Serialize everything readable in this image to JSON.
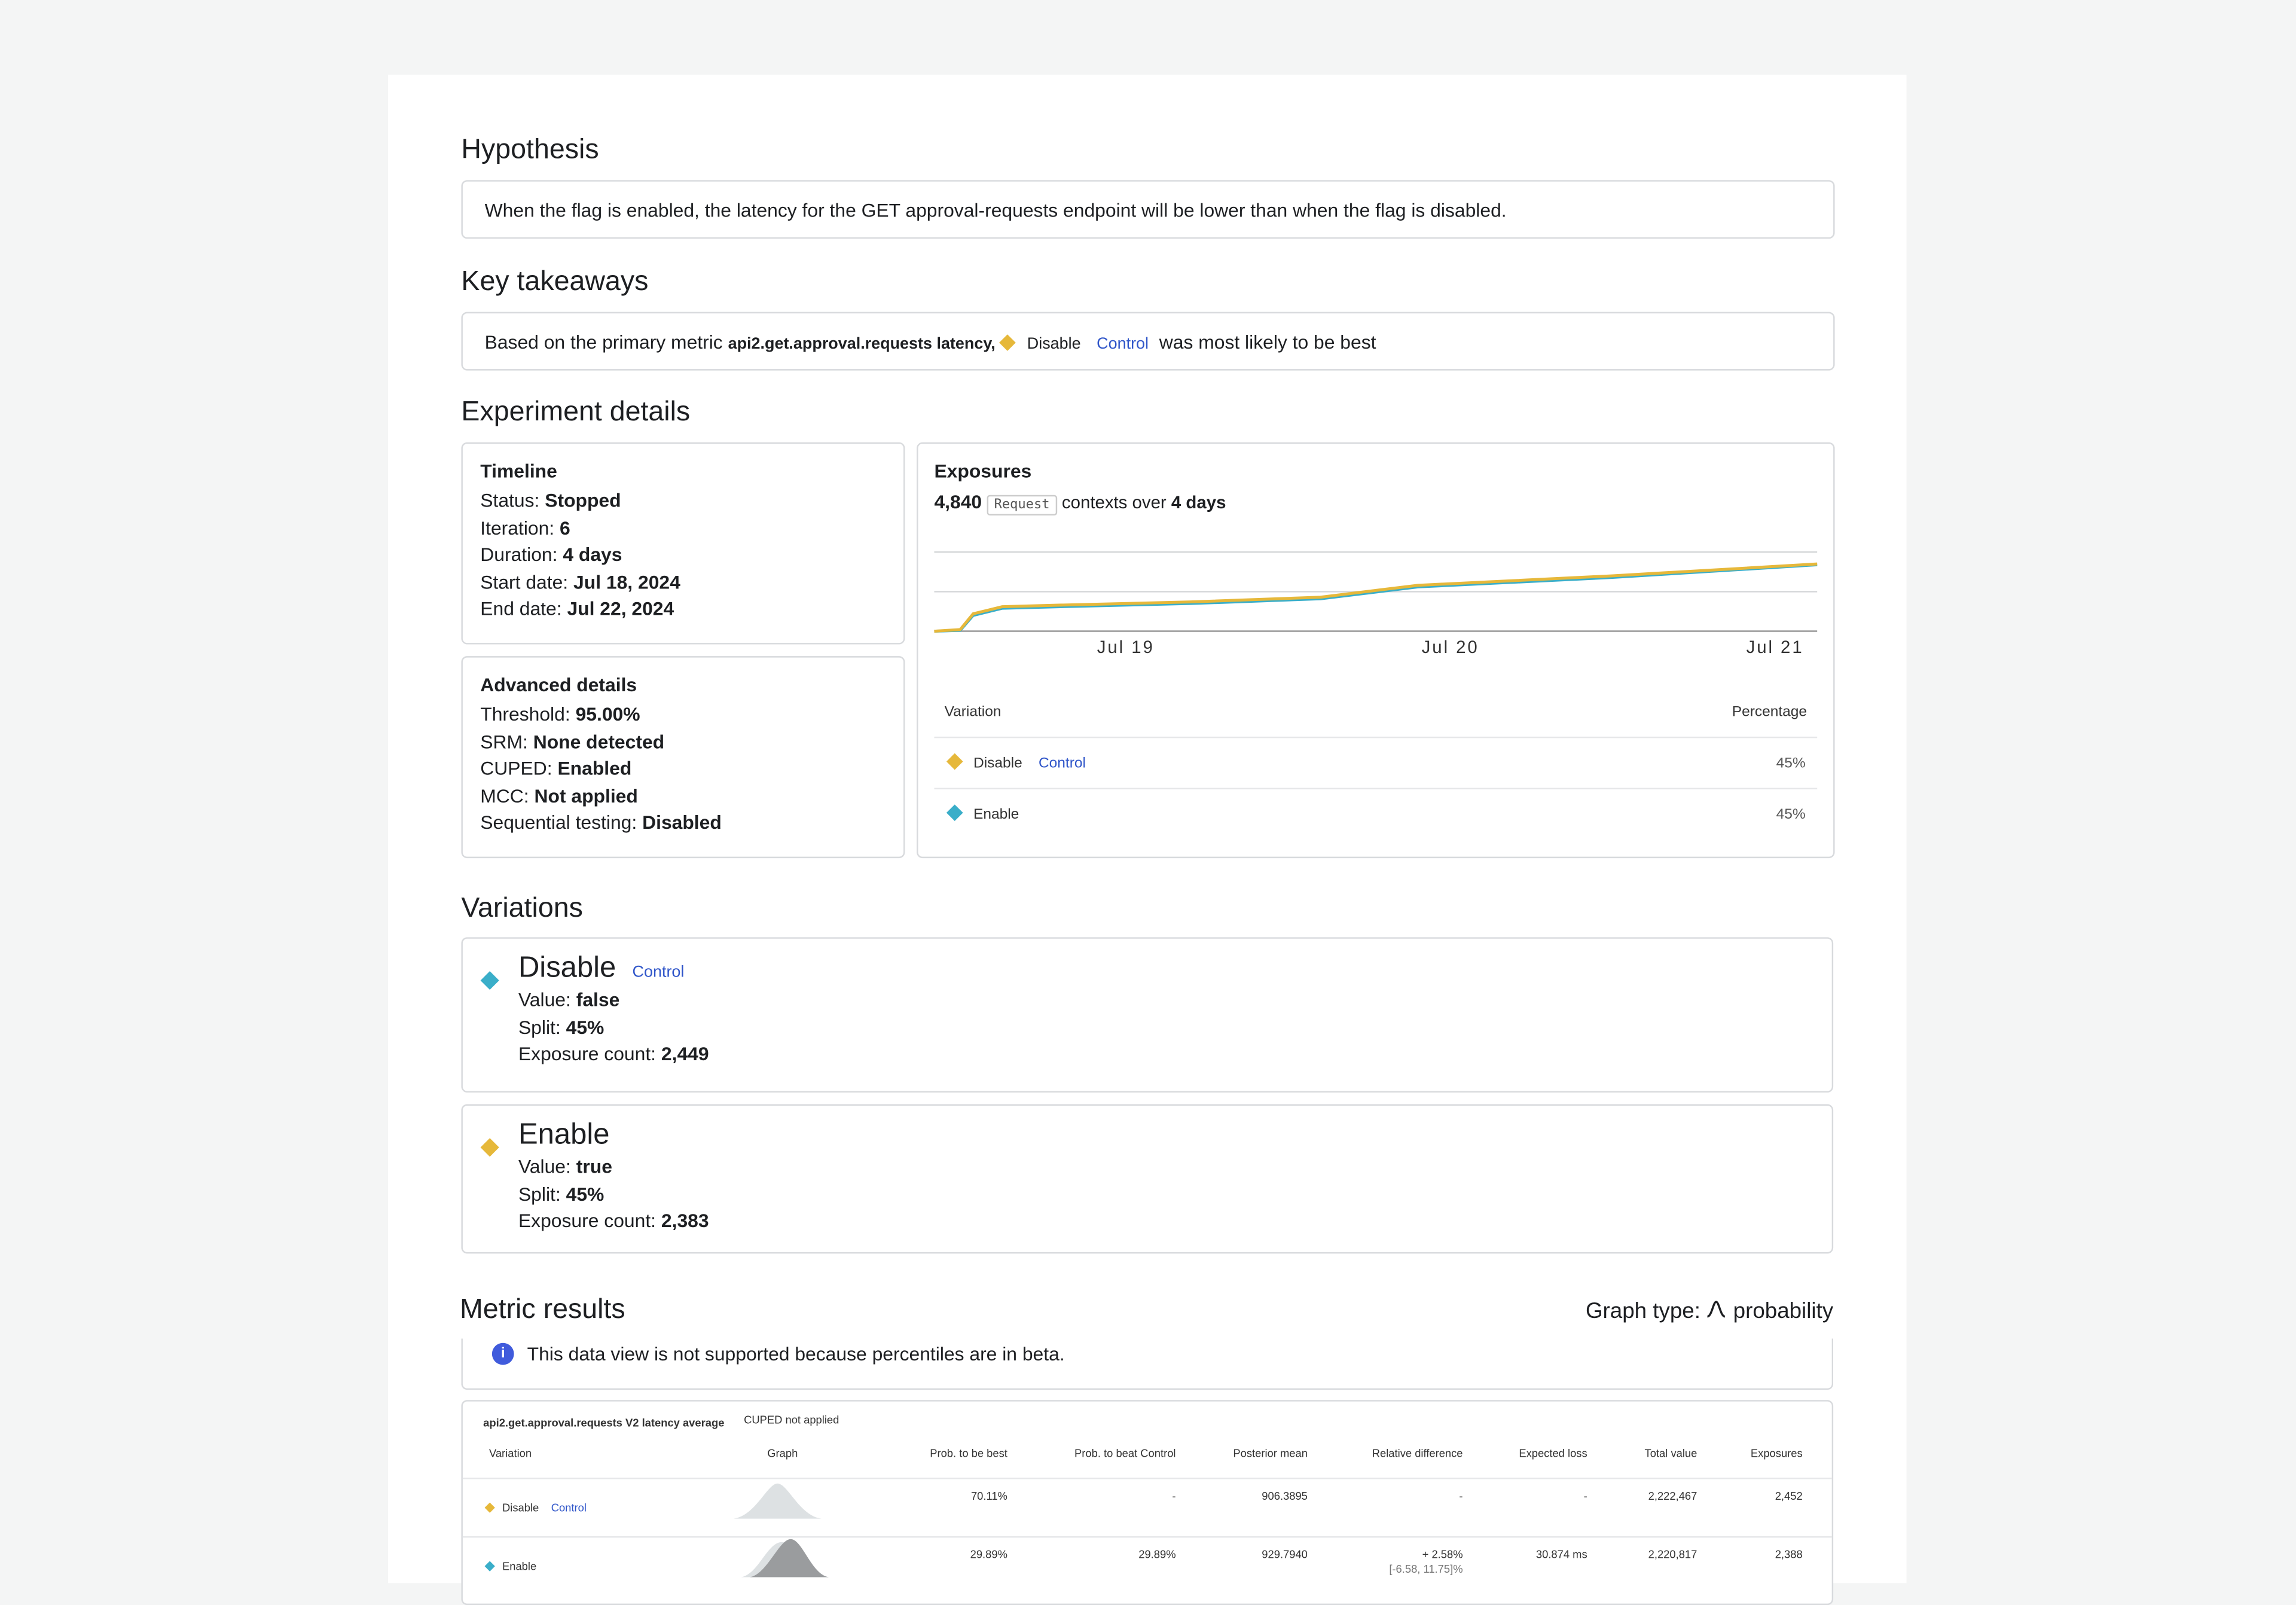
{
  "hypothesis": {
    "heading": "Hypothesis",
    "text": "When the flag is enabled, the latency for the GET approval-requests endpoint will be lower than when the flag is disabled."
  },
  "takeaways": {
    "heading": "Key takeaways",
    "prefix": "Based on the primary metric",
    "metric": "api2.get.approval.requests latency,",
    "variation": "Disable",
    "badge": "Control",
    "suffix": "was most likely to be best"
  },
  "details": {
    "heading": "Experiment details",
    "timeline": {
      "title": "Timeline",
      "items": [
        [
          "Status:",
          "Stopped"
        ],
        [
          "Iteration:",
          "6"
        ],
        [
          "Duration:",
          "4 days"
        ],
        [
          "Start date:",
          "Jul 18, 2024"
        ],
        [
          "End date:",
          "Jul 22, 2024"
        ]
      ]
    },
    "advanced": {
      "title": "Advanced details",
      "items": [
        [
          "Threshold:",
          "95.00%"
        ],
        [
          "SRM:",
          "None detected"
        ],
        [
          "CUPED:",
          "Enabled"
        ],
        [
          "MCC:",
          "Not applied"
        ],
        [
          "Sequential testing:",
          "Disabled"
        ]
      ]
    },
    "exposures": {
      "title": "Exposures",
      "count": "4,840",
      "kind": "Request",
      "mid": "contexts over",
      "duration": "4 days",
      "table": {
        "headers": [
          "Variation",
          "Percentage"
        ],
        "rows": [
          {
            "name": "Disable",
            "badge": "Control",
            "pct": "45%"
          },
          {
            "name": "Enable",
            "pct": "45%"
          }
        ]
      }
    }
  },
  "chart_data": {
    "type": "line",
    "xlim": [
      0.41,
      3.13
    ],
    "ylim": [
      0,
      1
    ],
    "xticks": [
      {
        "value": 1,
        "label": "Jul 19"
      },
      {
        "value": 2,
        "label": "Jul 20"
      },
      {
        "value": 3,
        "label": "Jul 21"
      }
    ],
    "yticks": [
      0,
      0.5,
      1
    ],
    "grid": true,
    "x": [
      0.41,
      0.49,
      0.53,
      0.62,
      0.8,
      1.2,
      1.6,
      1.78,
      1.9,
      2.5,
      3.13
    ],
    "series": [
      {
        "name": "Disable",
        "color": "#e6b83a",
        "values": [
          0,
          0.02,
          0.22,
          0.31,
          0.33,
          0.37,
          0.43,
          0.52,
          0.58,
          0.7,
          0.85
        ]
      },
      {
        "name": "Enable",
        "color": "#3aaec9",
        "values": [
          0,
          0.01,
          0.2,
          0.29,
          0.31,
          0.35,
          0.41,
          0.5,
          0.56,
          0.68,
          0.84
        ]
      }
    ]
  },
  "variations": {
    "heading": "Variations",
    "items": [
      {
        "name": "Disable",
        "badge": "Control",
        "fields": [
          [
            "Value:",
            "false"
          ],
          [
            "Split:",
            "45%"
          ],
          [
            "Exposure count:",
            "2,449"
          ]
        ]
      },
      {
        "name": "Enable",
        "fields": [
          [
            "Value:",
            "true"
          ],
          [
            "Split:",
            "45%"
          ],
          [
            "Exposure count:",
            "2,383"
          ]
        ]
      }
    ]
  },
  "metrics": {
    "heading": "Metric results",
    "graph_label": "Graph type:",
    "graph_type": "probability",
    "info": "This data view is not supported because percentiles are in beta.",
    "metric": "api2.get.approval.requests V2 latency average",
    "cuped": "CUPED not applied",
    "headers": [
      "Variation",
      "Graph",
      "Prob. to be best",
      "Prob. to beat Control",
      "Posterior mean",
      "Relative difference",
      "Expected loss",
      "Total value",
      "Exposures"
    ],
    "rows": [
      {
        "name": "Disable",
        "badge": "Control",
        "cells": [
          "70.11%",
          "-",
          "906.3895",
          "-",
          "-",
          "2,222,467",
          "2,452"
        ]
      },
      {
        "name": "Enable",
        "cells": [
          "29.89%",
          "29.89%",
          "929.7940",
          "+ 2.58%",
          "30.874 ms",
          "2,220,817",
          "2,388"
        ],
        "interval": "[-6.58, 11.75]%"
      }
    ]
  }
}
